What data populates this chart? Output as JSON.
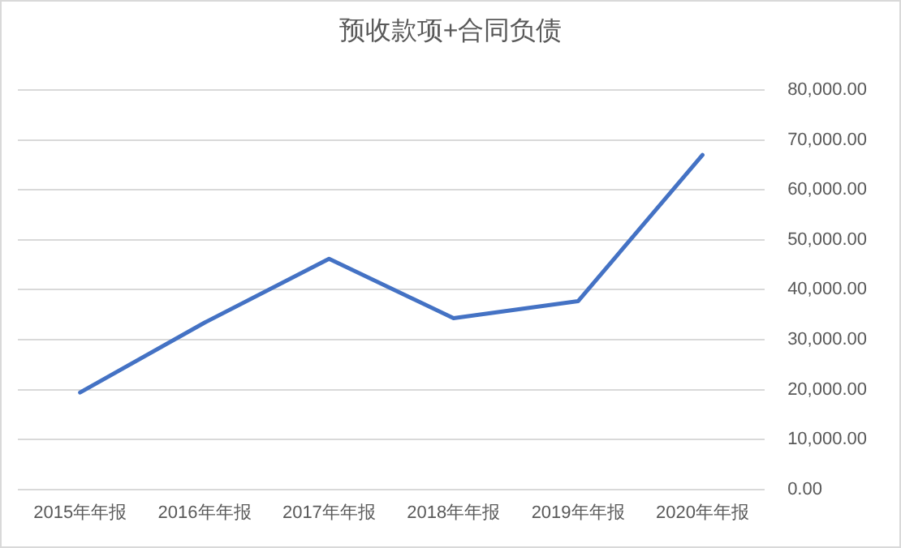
{
  "chart_data": {
    "type": "line",
    "title": "预收款项+合同负债",
    "categories": [
      "2015年年报",
      "2016年年报",
      "2017年年报",
      "2018年年报",
      "2019年年报",
      "2020年年报"
    ],
    "series": [
      {
        "color": "#4472c4",
        "values": [
          19400,
          33400,
          46200,
          34300,
          37700,
          67000
        ]
      }
    ],
    "ylim": [
      0,
      80000
    ],
    "yticks": [
      {
        "value": 0,
        "label": "0.00"
      },
      {
        "value": 10000,
        "label": "10,000.00"
      },
      {
        "value": 20000,
        "label": "20,000.00"
      },
      {
        "value": 30000,
        "label": "30,000.00"
      },
      {
        "value": 40000,
        "label": "40,000.00"
      },
      {
        "value": 50000,
        "label": "50,000.00"
      },
      {
        "value": 60000,
        "label": "60,000.00"
      },
      {
        "value": 70000,
        "label": "70,000.00"
      },
      {
        "value": 80000,
        "label": "80,000.00"
      }
    ],
    "grid": "y",
    "marker": "none",
    "line_style": "solid"
  }
}
